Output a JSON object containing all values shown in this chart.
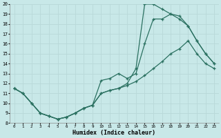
{
  "xlabel": "Humidex (Indice chaleur)",
  "bg_color": "#c8e8e8",
  "grid_color": "#b8d8d8",
  "line_color": "#2a7060",
  "xlim": [
    -0.5,
    23.5
  ],
  "ylim": [
    8,
    20
  ],
  "xticks": [
    0,
    1,
    2,
    3,
    4,
    5,
    6,
    7,
    8,
    9,
    10,
    11,
    12,
    13,
    14,
    15,
    16,
    17,
    18,
    19,
    20,
    21,
    22,
    23
  ],
  "yticks": [
    8,
    9,
    10,
    11,
    12,
    13,
    14,
    15,
    16,
    17,
    18,
    19,
    20
  ],
  "line1_x": [
    0,
    1,
    2,
    3,
    4,
    5,
    6,
    7,
    8,
    9,
    10,
    11,
    12,
    13,
    14,
    15,
    16,
    17,
    18,
    19,
    20,
    21,
    22,
    23
  ],
  "line1_y": [
    11.5,
    11.0,
    10.0,
    9.0,
    8.7,
    8.4,
    8.6,
    9.0,
    9.5,
    9.8,
    12.3,
    12.5,
    13.0,
    12.5,
    13.0,
    16.0,
    18.5,
    18.5,
    19.0,
    18.5,
    17.8,
    16.3,
    15.0,
    14.0
  ],
  "line2_x": [
    0,
    1,
    2,
    3,
    4,
    5,
    6,
    7,
    8,
    9,
    10,
    11,
    12,
    13,
    14,
    15,
    16,
    17,
    18,
    19,
    20,
    21,
    22,
    23
  ],
  "line2_y": [
    11.5,
    11.0,
    10.0,
    9.0,
    8.7,
    8.4,
    8.6,
    9.0,
    9.5,
    9.8,
    11.0,
    11.3,
    11.5,
    11.8,
    12.2,
    12.8,
    13.5,
    14.2,
    15.0,
    15.5,
    16.3,
    15.0,
    14.0,
    13.5
  ],
  "line3_x": [
    0,
    1,
    2,
    3,
    4,
    5,
    6,
    7,
    8,
    9,
    10,
    11,
    12,
    13,
    14,
    15,
    16,
    17,
    18,
    19,
    20,
    21,
    22,
    23
  ],
  "line3_y": [
    11.5,
    11.0,
    10.0,
    9.0,
    8.7,
    8.4,
    8.6,
    9.0,
    9.5,
    9.8,
    11.0,
    11.3,
    11.5,
    12.0,
    13.5,
    20.0,
    20.0,
    19.5,
    19.0,
    18.8,
    17.8,
    16.3,
    15.0,
    14.0
  ]
}
